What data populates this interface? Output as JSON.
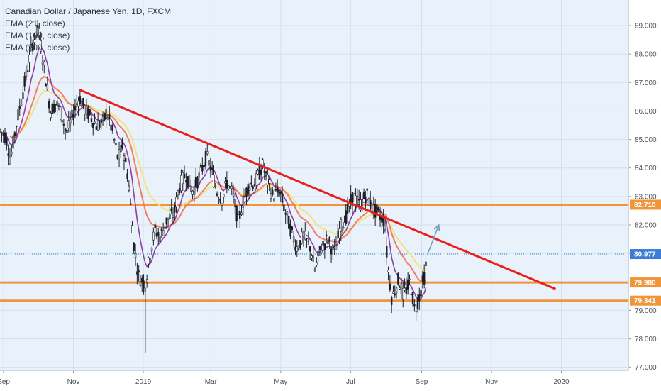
{
  "legend": {
    "title": "Canadian Dollar / Japanese Yen, 1D, FXCM",
    "ema_21": "EMA (21, close)",
    "ema_100": "EMA (100, close)",
    "ema_200": "EMA (200, close)"
  },
  "colors": {
    "background": "#e9f1fb",
    "candle_up": "#1b1f26",
    "candle_down": "#1b1f26",
    "ema_21": "#8e3fa6",
    "ema_100": "#f08060",
    "ema_200": "#f5e27a",
    "trendline": "#e8201e",
    "horizontal_level": "#f0953a",
    "arrow": "#6f9bbf",
    "current_price": "#3b7dd8"
  },
  "chart_data": {
    "type": "candlestick",
    "symbol": "Canadian Dollar / Japanese Yen, 1D, FXCM",
    "y_axis": {
      "ylim": [
        76.8,
        89.5
      ],
      "ticks": [
        "89.000",
        "88.000",
        "87.000",
        "86.000",
        "85.000",
        "84.000",
        "83.000",
        "82.000",
        "81.000",
        "79.000",
        "78.000",
        "77.000"
      ]
    },
    "x_axis": {
      "ticks": [
        "Sep",
        "Nov",
        "2019",
        "Mar",
        "May",
        "Jul",
        "Sep",
        "Nov",
        "2020"
      ]
    },
    "price_labels": [
      {
        "value": "82.710",
        "kind": "level"
      },
      {
        "value": "80.977",
        "kind": "current"
      },
      {
        "value": "79.980",
        "kind": "level"
      },
      {
        "value": "79.341",
        "kind": "level"
      }
    ],
    "horizontal_levels": [
      82.71,
      79.98,
      79.341
    ],
    "current_price": 80.977,
    "trendline": {
      "from": {
        "x": "2018-11-06",
        "y": 86.75
      },
      "to": {
        "x": "2019-12-27",
        "y": 79.75
      }
    },
    "projection_arrow": {
      "from": {
        "x": "2019-09-06",
        "y": 80.95
      },
      "to": {
        "x": "2019-09-16",
        "y": 82.0
      }
    },
    "close_path": [
      [
        "2018-08-29",
        85.3
      ],
      [
        "2018-09-03",
        85.1
      ],
      [
        "2018-09-07",
        84.3
      ],
      [
        "2018-09-12",
        85.5
      ],
      [
        "2018-09-17",
        86.5
      ],
      [
        "2018-09-21",
        87.3
      ],
      [
        "2018-09-26",
        88.3
      ],
      [
        "2018-10-01",
        89.0
      ],
      [
        "2018-10-04",
        88.2
      ],
      [
        "2018-10-08",
        87.1
      ],
      [
        "2018-10-12",
        86.0
      ],
      [
        "2018-10-17",
        86.3
      ],
      [
        "2018-10-22",
        85.8
      ],
      [
        "2018-10-26",
        85.2
      ],
      [
        "2018-10-31",
        85.8
      ],
      [
        "2018-11-06",
        86.5
      ],
      [
        "2018-11-12",
        86.0
      ],
      [
        "2018-11-16",
        85.8
      ],
      [
        "2018-11-21",
        85.5
      ],
      [
        "2018-11-27",
        85.6
      ],
      [
        "2018-11-30",
        86.0
      ],
      [
        "2018-12-05",
        85.3
      ],
      [
        "2018-12-10",
        84.3
      ],
      [
        "2018-12-14",
        84.8
      ],
      [
        "2018-12-19",
        83.6
      ],
      [
        "2018-12-24",
        81.2
      ],
      [
        "2018-12-28",
        80.2
      ],
      [
        "2019-01-03",
        79.9
      ],
      [
        "2019-01-07",
        81.0
      ],
      [
        "2019-01-11",
        81.8
      ],
      [
        "2019-01-16",
        81.6
      ],
      [
        "2019-01-22",
        82.2
      ],
      [
        "2019-01-28",
        82.4
      ],
      [
        "2019-02-01",
        83.3
      ],
      [
        "2019-02-07",
        83.8
      ],
      [
        "2019-02-13",
        83.2
      ],
      [
        "2019-02-19",
        83.7
      ],
      [
        "2019-02-25",
        84.4
      ],
      [
        "2019-03-01",
        84.0
      ],
      [
        "2019-03-06",
        83.2
      ],
      [
        "2019-03-11",
        82.9
      ],
      [
        "2019-03-15",
        83.5
      ],
      [
        "2019-03-20",
        83.1
      ],
      [
        "2019-03-25",
        82.1
      ],
      [
        "2019-03-29",
        82.8
      ],
      [
        "2019-04-03",
        83.4
      ],
      [
        "2019-04-09",
        83.5
      ],
      [
        "2019-04-15",
        84.1
      ],
      [
        "2019-04-19",
        83.6
      ],
      [
        "2019-04-24",
        83.0
      ],
      [
        "2019-04-30",
        83.2
      ],
      [
        "2019-05-06",
        82.3
      ],
      [
        "2019-05-10",
        81.8
      ],
      [
        "2019-05-15",
        81.2
      ],
      [
        "2019-05-21",
        81.6
      ],
      [
        "2019-05-27",
        81.2
      ],
      [
        "2019-05-31",
        80.4
      ],
      [
        "2019-06-05",
        81.2
      ],
      [
        "2019-06-11",
        81.5
      ],
      [
        "2019-06-17",
        81.0
      ],
      [
        "2019-06-21",
        81.8
      ],
      [
        "2019-06-27",
        82.3
      ],
      [
        "2019-07-03",
        83.0
      ],
      [
        "2019-07-09",
        82.7
      ],
      [
        "2019-07-15",
        83.1
      ],
      [
        "2019-07-19",
        82.6
      ],
      [
        "2019-07-25",
        82.4
      ],
      [
        "2019-07-31",
        82.1
      ],
      [
        "2019-08-02",
        80.7
      ],
      [
        "2019-08-06",
        79.4
      ],
      [
        "2019-08-12",
        80.1
      ],
      [
        "2019-08-16",
        79.5
      ],
      [
        "2019-08-22",
        80.0
      ],
      [
        "2019-08-26",
        79.0
      ],
      [
        "2019-08-30",
        79.5
      ],
      [
        "2019-09-04",
        80.3
      ],
      [
        "2019-09-06",
        80.977
      ]
    ],
    "extremes": {
      "high": 89.0,
      "low": 77.5
    }
  }
}
